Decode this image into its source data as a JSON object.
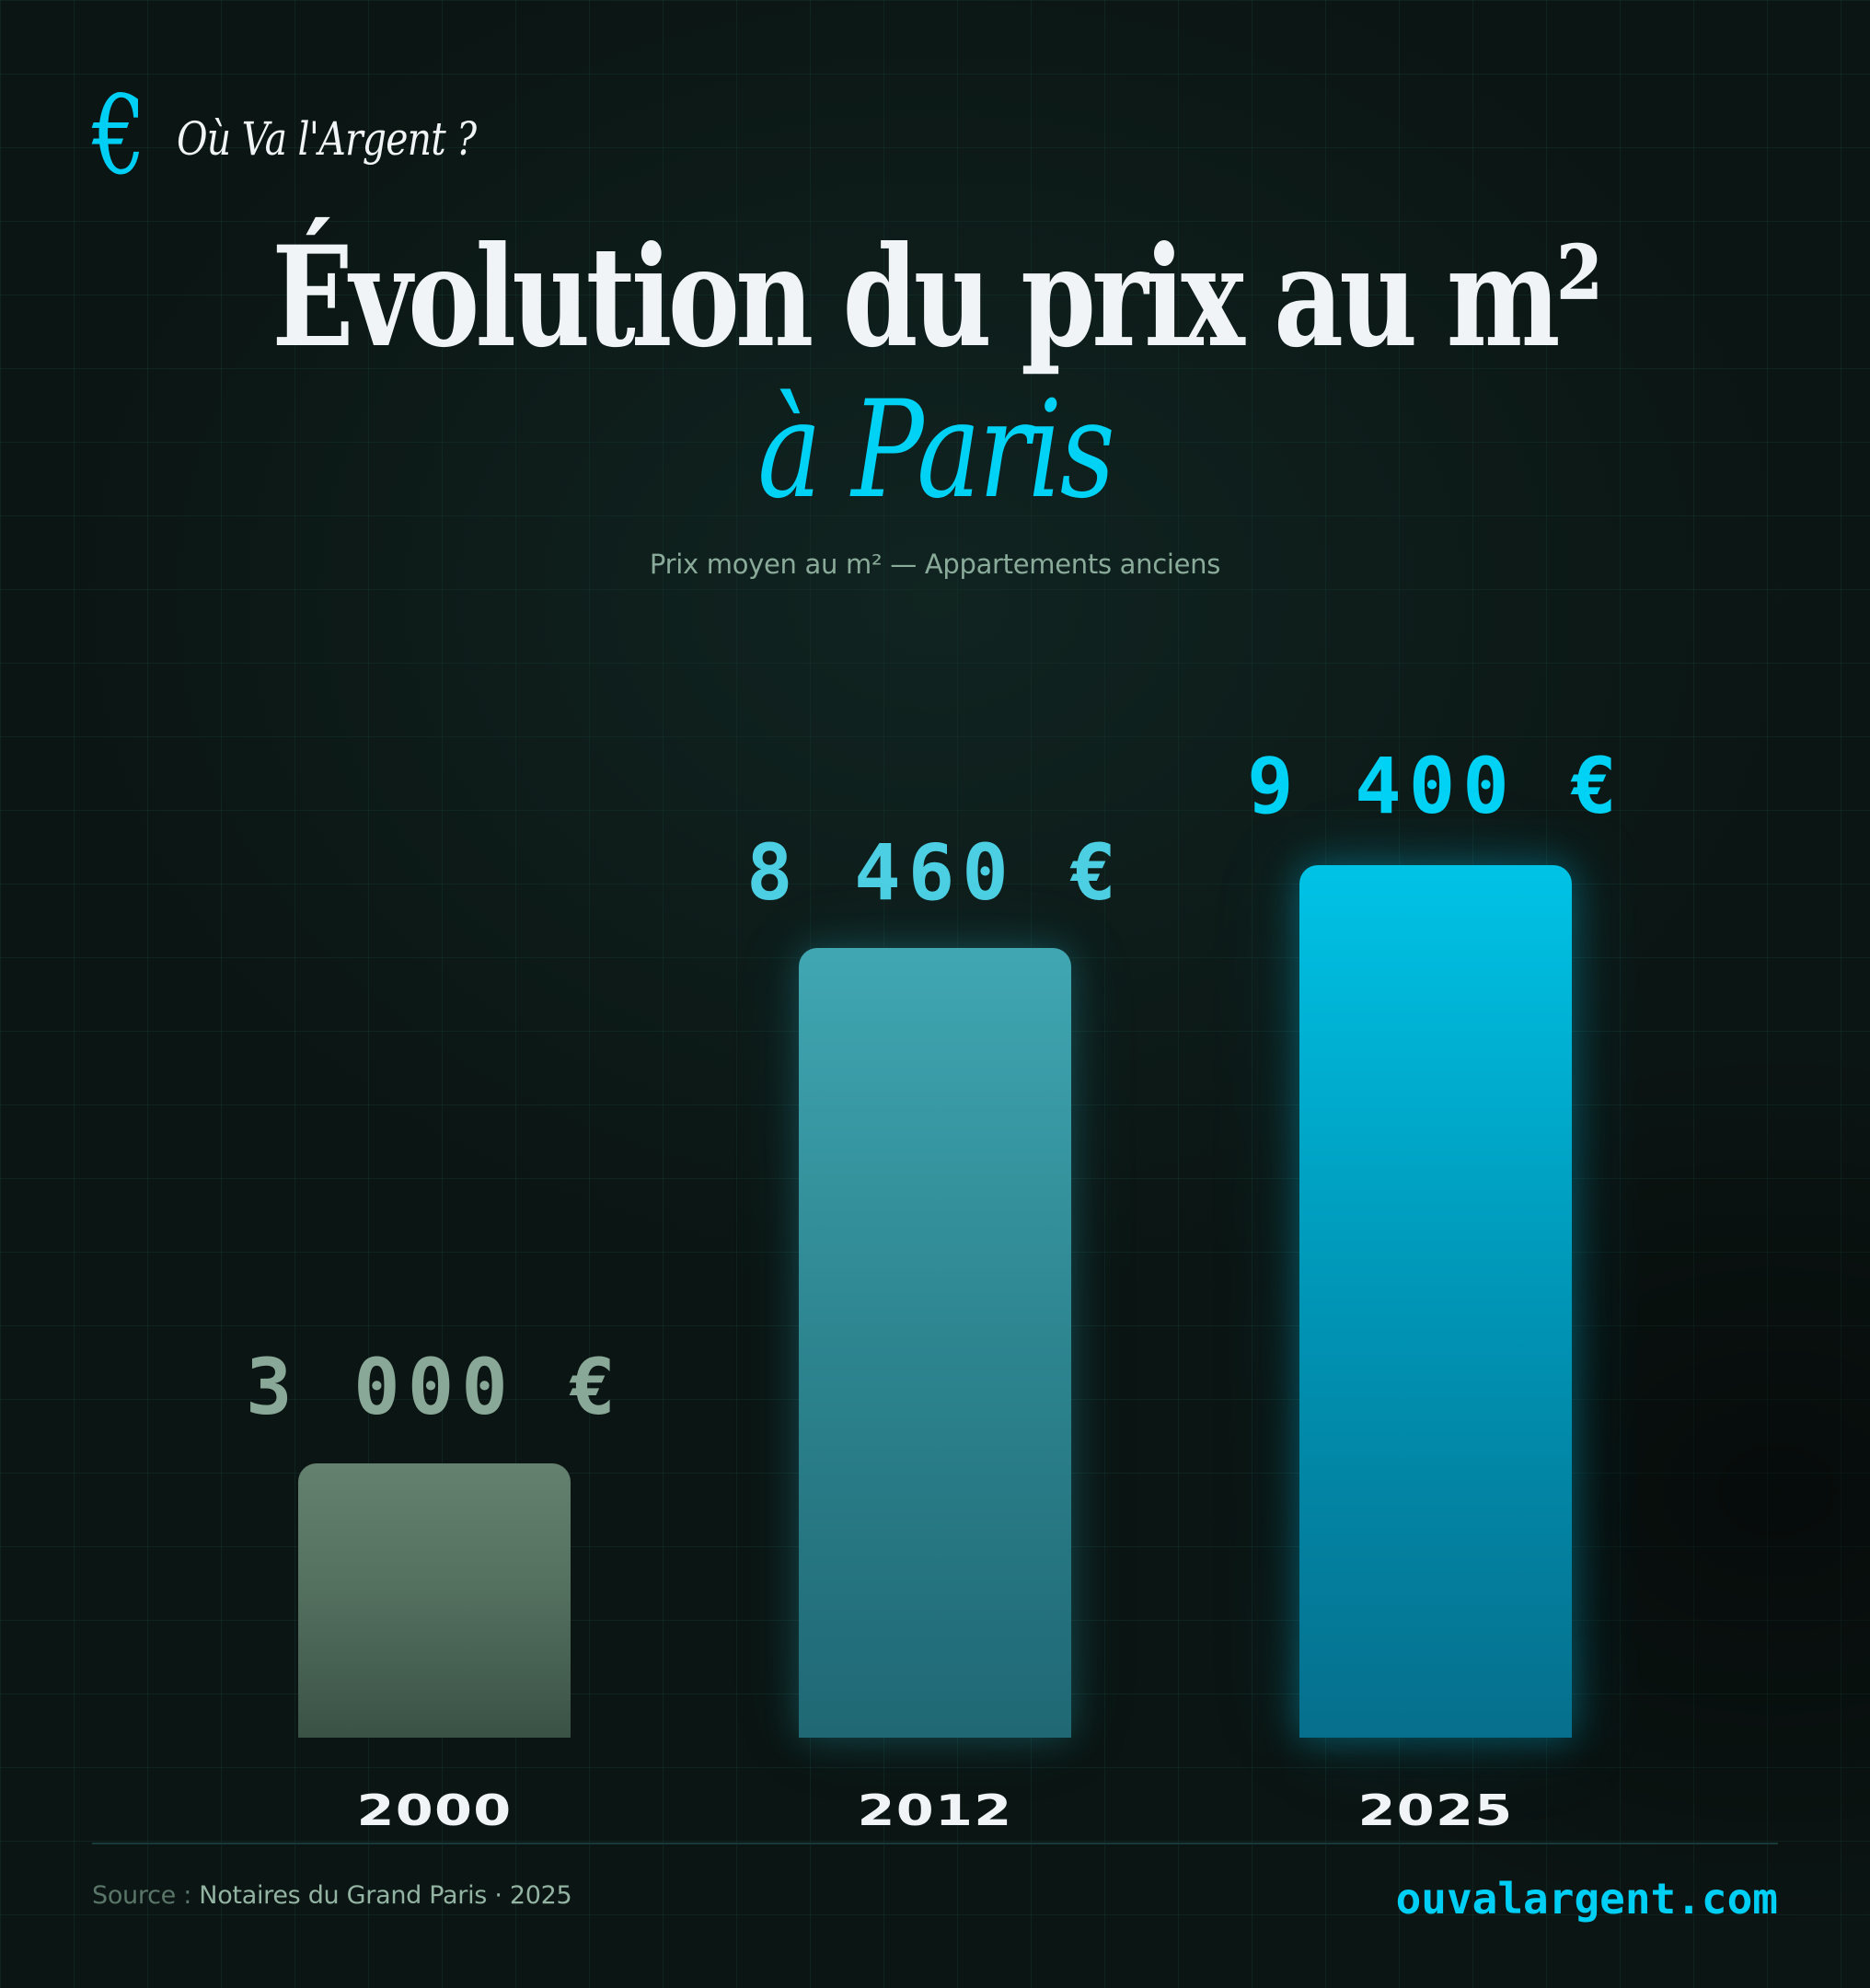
{
  "brand": {
    "logo_glyph": "€",
    "logo_icon": "euro-icon",
    "name": "Où Va l'Argent ?"
  },
  "header": {
    "title": "Évolution du prix au m²",
    "title_accent": "à Paris",
    "subtitle": "Prix moyen au m² — Appartements anciens"
  },
  "bars": [
    {
      "year": "2000",
      "label": "3 000 €",
      "color_top": "#64806f",
      "color_bottom": "#3a5246",
      "label_color": "#8aa897"
    },
    {
      "year": "2012",
      "label": "8 460 €",
      "color_top": "#40a7b2",
      "color_bottom": "#1f6874",
      "label_color": "#4ccfe2"
    },
    {
      "year": "2025",
      "label": "9 400 €",
      "color_top": "#00c3e6",
      "color_bottom": "#066f8d",
      "label_color": "#00d2f5"
    }
  ],
  "footer": {
    "source_prefix": "Source :",
    "source_body": " Notaires du Grand Paris · 2025",
    "website": "ouvalargent.com"
  },
  "colors": {
    "background": "#0b1513",
    "accent": "#00d2f5",
    "text": "#f0f4f6",
    "muted": "#8aaa9a"
  },
  "chart_data": {
    "type": "bar",
    "title": "Évolution du prix au m² à Paris",
    "subtitle": "Prix moyen au m² — Appartements anciens",
    "categories": [
      "2000",
      "2012",
      "2025"
    ],
    "values": [
      3000,
      8460,
      9400
    ],
    "value_labels": [
      "3 000 €",
      "8 460 €",
      "9 400 €"
    ],
    "unit": "€/m²",
    "xlabel": "",
    "ylabel": "",
    "ylim": [
      0,
      9400
    ],
    "grid": false,
    "legend": null,
    "source": "Notaires du Grand Paris · 2025"
  }
}
